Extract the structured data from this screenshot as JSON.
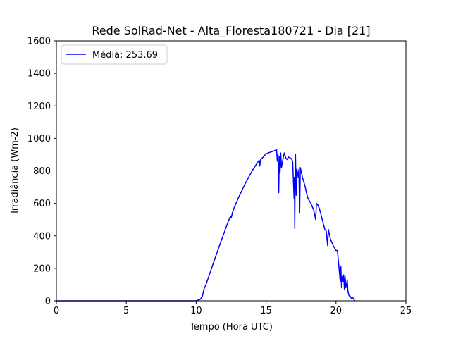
{
  "chart_data": {
    "type": "line",
    "title": "Rede SolRad-Net - Alta_Floresta180721 - Dia [21]",
    "xlabel": "Tempo (Hora UTC)",
    "ylabel": "Irradiância (Wm-2)",
    "xlim": [
      0,
      25
    ],
    "ylim": [
      0,
      1600
    ],
    "xticks": [
      0,
      5,
      10,
      15,
      20,
      25
    ],
    "yticks": [
      0,
      200,
      400,
      600,
      800,
      1000,
      1200,
      1400,
      1600
    ],
    "grid": false,
    "legend": {
      "placement": "top-left"
    },
    "series": [
      {
        "name": "Média: 253.69",
        "color": "#0000ff",
        "x": [
          0,
          10.0,
          10.3,
          10.45,
          10.55,
          10.7,
          11.0,
          11.5,
          12.0,
          12.3,
          12.45,
          12.5,
          12.6,
          12.7,
          13.0,
          13.5,
          14.0,
          14.3,
          14.5,
          14.55,
          14.6,
          14.8,
          15.0,
          15.3,
          15.5,
          15.75,
          15.8,
          15.85,
          15.9,
          15.95,
          16.0,
          16.05,
          16.1,
          16.2,
          16.3,
          16.4,
          16.5,
          16.6,
          16.7,
          16.8,
          16.9,
          17.0,
          17.02,
          17.05,
          17.08,
          17.1,
          17.15,
          17.2,
          17.25,
          17.3,
          17.35,
          17.4,
          17.45,
          17.5,
          17.55,
          17.6,
          17.7,
          17.8,
          17.9,
          18.0,
          18.2,
          18.4,
          18.55,
          18.6,
          18.65,
          18.7,
          18.8,
          18.9,
          19.0,
          19.2,
          19.3,
          19.4,
          19.45,
          19.5,
          19.6,
          19.8,
          20.0,
          20.1,
          20.3,
          20.35,
          20.4,
          20.45,
          20.5,
          20.55,
          20.6,
          20.65,
          20.7,
          20.75,
          20.8,
          20.85,
          20.9,
          20.95,
          21.0,
          21.1,
          21.2,
          21.3,
          21.35
        ],
        "y": [
          0,
          0,
          10,
          30,
          70,
          100,
          175,
          300,
          420,
          490,
          520,
          510,
          545,
          570,
          630,
          720,
          800,
          840,
          865,
          830,
          870,
          885,
          905,
          915,
          920,
          930,
          860,
          900,
          665,
          890,
          790,
          910,
          820,
          870,
          910,
          880,
          870,
          885,
          880,
          875,
          860,
          630,
          760,
          445,
          890,
          900,
          650,
          810,
          790,
          760,
          810,
          540,
          820,
          800,
          780,
          760,
          730,
          700,
          660,
          630,
          600,
          560,
          500,
          600,
          595,
          590,
          570,
          540,
          505,
          440,
          430,
          340,
          440,
          420,
          380,
          340,
          310,
          310,
          120,
          210,
          80,
          150,
          120,
          160,
          70,
          150,
          80,
          100,
          130,
          60,
          40,
          30,
          30,
          15,
          20,
          5,
          0
        ]
      }
    ]
  }
}
